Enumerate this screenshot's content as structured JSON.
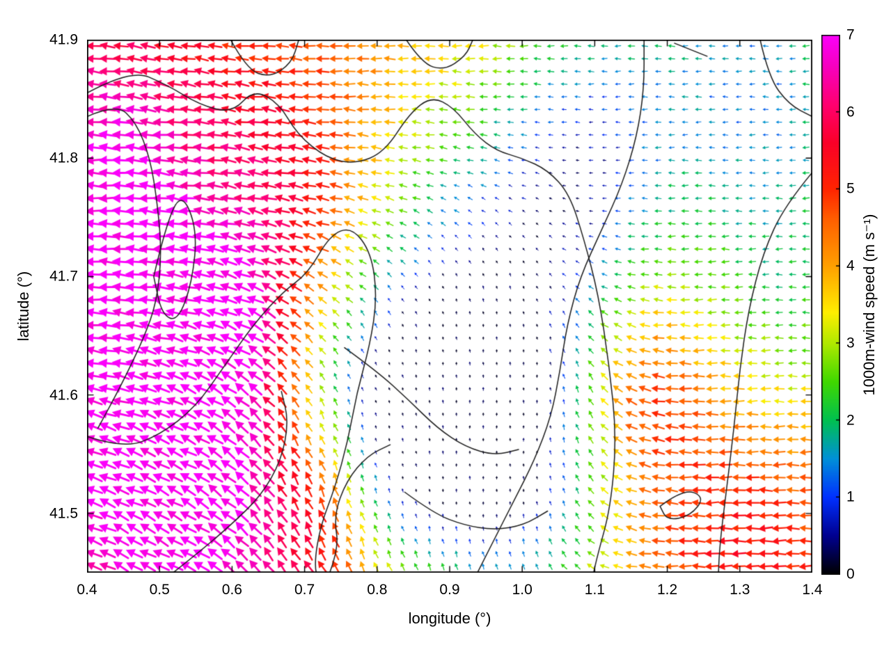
{
  "chart_data": {
    "type": "quiver",
    "title": "",
    "xlabel": "longitude (°)",
    "ylabel": "latitude (°)",
    "xlim": [
      0.4,
      1.4
    ],
    "ylim": [
      41.45,
      41.9
    ],
    "xticks": {
      "values": [
        0.4,
        0.5,
        0.6,
        0.7,
        0.8,
        0.9,
        1.0,
        1.1,
        1.2,
        1.3,
        1.4
      ],
      "labels": [
        "0.4",
        "0.5",
        "0.6",
        "0.7",
        "0.8",
        "0.9",
        "1.0",
        "1.1",
        "1.2",
        "1.3",
        "1.4"
      ]
    },
    "yticks": {
      "values": [
        41.5,
        41.6,
        41.7,
        41.8,
        41.9
      ],
      "labels": [
        "41.5",
        "41.6",
        "41.7",
        "41.8",
        "41.9"
      ]
    },
    "colorbar": {
      "label": "1000m-wind speed (m s⁻¹)",
      "min": 0,
      "max": 7,
      "ticks": {
        "values": [
          0,
          1,
          2,
          3,
          4,
          5,
          6,
          7
        ],
        "labels": [
          "0",
          "1",
          "2",
          "3",
          "4",
          "5",
          "6",
          "7"
        ]
      },
      "stops": [
        [
          0,
          "#000000"
        ],
        [
          0.5,
          "#000090"
        ],
        [
          1,
          "#0030ff"
        ],
        [
          1.5,
          "#0090d8"
        ],
        [
          2,
          "#00c050"
        ],
        [
          2.5,
          "#40d800"
        ],
        [
          3,
          "#b0e800"
        ],
        [
          3.4,
          "#ffee00"
        ],
        [
          4,
          "#ffa000"
        ],
        [
          4.6,
          "#ff6000"
        ],
        [
          5,
          "#ff2400"
        ],
        [
          5.6,
          "#fa0028"
        ],
        [
          6.1,
          "#ff0070"
        ],
        [
          6.6,
          "#f600c0"
        ],
        [
          7,
          "#fb00fb"
        ]
      ]
    },
    "grid": {
      "nx": 54,
      "ny": 42
    },
    "field": {
      "base_speed": 4.4,
      "base_angle": 180,
      "speed_jitter": 0.55,
      "angle_jitter": 16,
      "speed_features": [
        {
          "x": 0.53,
          "y": 41.5,
          "sigma": 0.155,
          "amp": 2.8
        },
        {
          "x": 0.44,
          "y": 41.81,
          "sigma": 0.11,
          "amp": 1.8
        },
        {
          "x": 0.4,
          "y": 41.66,
          "sigma": 0.1,
          "amp": 1.4
        },
        {
          "x": 0.6,
          "y": 41.65,
          "sigma": 0.06,
          "amp": 1.6
        },
        {
          "x": 0.95,
          "y": 41.575,
          "sigma": 0.095,
          "amp": -4.2
        },
        {
          "x": 0.82,
          "y": 41.545,
          "sigma": 0.075,
          "amp": -2.2
        },
        {
          "x": 1.33,
          "y": 41.875,
          "sigma": 0.12,
          "amp": -2.8
        },
        {
          "x": 1.1,
          "y": 41.845,
          "sigma": 0.1,
          "amp": -1.8
        },
        {
          "x": 0.97,
          "y": 41.71,
          "sigma": 0.11,
          "amp": -1.9
        },
        {
          "x": 0.8,
          "y": 41.63,
          "sigma": 0.075,
          "amp": -1.6
        },
        {
          "x": 1.17,
          "y": 41.6,
          "sigma": 0.055,
          "amp": 1.1
        },
        {
          "x": 1.31,
          "y": 41.47,
          "sigma": 0.1,
          "amp": 1.0
        },
        {
          "x": 1.4,
          "y": 41.67,
          "sigma": 0.09,
          "amp": -1.3
        },
        {
          "x": 1.05,
          "y": 41.46,
          "sigma": 0.08,
          "amp": -1.1
        },
        {
          "x": 0.74,
          "y": 41.52,
          "sigma": 0.05,
          "amp": 0.9
        },
        {
          "x": 0.67,
          "y": 41.79,
          "sigma": 0.07,
          "amp": 0.9
        },
        {
          "x": 0.88,
          "y": 41.77,
          "sigma": 0.09,
          "amp": -0.6
        },
        {
          "x": 0.7,
          "y": 41.6,
          "sigma": 0.06,
          "amp": -1.0
        },
        {
          "x": 1.28,
          "y": 41.66,
          "sigma": 0.09,
          "amp": -0.5
        },
        {
          "x": 1.08,
          "y": 41.77,
          "sigma": 0.07,
          "amp": -1.2
        }
      ],
      "direction_features": [
        {
          "x": 0.54,
          "y": 41.5,
          "sigma": 0.16,
          "angle": 140,
          "weight": 2.5
        },
        {
          "x": 0.74,
          "y": 41.52,
          "sigma": 0.085,
          "angle": 95,
          "weight": 4
        },
        {
          "x": 0.95,
          "y": 41.575,
          "sigma": 0.1,
          "angle": 70,
          "weight": 3
        },
        {
          "x": 0.44,
          "y": 41.7,
          "sigma": 0.1,
          "angle": 200,
          "weight": 1.2
        },
        {
          "x": 0.5,
          "y": 41.875,
          "sigma": 0.09,
          "angle": 160,
          "weight": 1.0
        }
      ]
    },
    "contours": {
      "color": "#1c1c1c",
      "width": 1.5,
      "lines": [
        [
          [
            0.4,
            41.855
          ],
          [
            0.46,
            41.875
          ],
          [
            0.51,
            41.862
          ],
          [
            0.555,
            41.845
          ],
          [
            0.6,
            41.838
          ],
          [
            0.63,
            41.858
          ],
          [
            0.665,
            41.846
          ],
          [
            0.69,
            41.82
          ],
          [
            0.73,
            41.8
          ],
          [
            0.77,
            41.795
          ],
          [
            0.81,
            41.805
          ],
          [
            0.845,
            41.838
          ],
          [
            0.875,
            41.852
          ],
          [
            0.905,
            41.843
          ],
          [
            0.935,
            41.82
          ],
          [
            0.965,
            41.806
          ],
          [
            1.0,
            41.8
          ],
          [
            1.035,
            41.79
          ],
          [
            1.065,
            41.77
          ],
          [
            1.085,
            41.732
          ],
          [
            1.105,
            41.685
          ],
          [
            1.12,
            41.625
          ],
          [
            1.13,
            41.565
          ],
          [
            1.122,
            41.505
          ],
          [
            1.103,
            41.463
          ],
          [
            1.095,
            41.44
          ]
        ],
        [
          [
            0.4,
            41.835
          ],
          [
            0.44,
            41.846
          ],
          [
            0.468,
            41.83
          ],
          [
            0.487,
            41.8
          ],
          [
            0.497,
            41.762
          ],
          [
            0.503,
            41.72
          ],
          [
            0.496,
            41.678
          ],
          [
            0.478,
            41.648
          ],
          [
            0.458,
            41.622
          ],
          [
            0.44,
            41.6
          ],
          [
            0.415,
            41.572
          ]
        ],
        [
          [
            0.492,
            41.7
          ],
          [
            0.508,
            41.742
          ],
          [
            0.53,
            41.772
          ],
          [
            0.552,
            41.74
          ],
          [
            0.545,
            41.695
          ],
          [
            0.525,
            41.662
          ],
          [
            0.503,
            41.668
          ],
          [
            0.492,
            41.7
          ]
        ],
        [
          [
            0.4,
            41.565
          ],
          [
            0.45,
            41.555
          ],
          [
            0.5,
            41.566
          ],
          [
            0.55,
            41.59
          ],
          [
            0.59,
            41.625
          ],
          [
            0.63,
            41.66
          ],
          [
            0.67,
            41.687
          ],
          [
            0.705,
            41.703
          ],
          [
            0.735,
            41.735
          ],
          [
            0.765,
            41.742
          ],
          [
            0.792,
            41.72
          ],
          [
            0.8,
            41.682
          ],
          [
            0.79,
            41.642
          ],
          [
            0.772,
            41.602
          ],
          [
            0.76,
            41.562
          ],
          [
            0.742,
            41.522
          ],
          [
            0.722,
            41.49
          ],
          [
            0.713,
            41.457
          ],
          [
            0.72,
            41.44
          ]
        ],
        [
          [
            0.93,
            41.44
          ],
          [
            0.958,
            41.474
          ],
          [
            0.988,
            41.51
          ],
          [
            1.017,
            41.545
          ],
          [
            1.04,
            41.582
          ],
          [
            1.052,
            41.62
          ],
          [
            1.062,
            41.66
          ],
          [
            1.08,
            41.7
          ],
          [
            1.11,
            41.74
          ],
          [
            1.138,
            41.778
          ],
          [
            1.158,
            41.818
          ],
          [
            1.168,
            41.858
          ],
          [
            1.168,
            41.9
          ]
        ],
        [
          [
            1.4,
            41.788
          ],
          [
            1.362,
            41.76
          ],
          [
            1.332,
            41.72
          ],
          [
            1.312,
            41.672
          ],
          [
            1.3,
            41.622
          ],
          [
            1.292,
            41.572
          ],
          [
            1.282,
            41.522
          ],
          [
            1.272,
            41.472
          ],
          [
            1.27,
            41.44
          ]
        ],
        [
          [
            1.328,
            41.9
          ],
          [
            1.34,
            41.868
          ],
          [
            1.368,
            41.845
          ],
          [
            1.4,
            41.835
          ]
        ],
        [
          [
            1.21,
            41.897
          ],
          [
            1.255,
            41.886
          ]
        ],
        [
          [
            0.498,
            41.44
          ],
          [
            0.548,
            41.464
          ],
          [
            0.598,
            41.49
          ],
          [
            0.64,
            41.515
          ],
          [
            0.668,
            41.545
          ],
          [
            0.678,
            41.578
          ],
          [
            0.668,
            41.603
          ]
        ],
        [
          [
            0.728,
            41.44
          ],
          [
            0.748,
            41.468
          ],
          [
            0.74,
            41.498
          ],
          [
            0.758,
            41.528
          ],
          [
            0.787,
            41.549
          ],
          [
            0.818,
            41.558
          ]
        ],
        [
          [
            0.755,
            41.64
          ],
          [
            0.8,
            41.62
          ],
          [
            0.843,
            41.596
          ],
          [
            0.883,
            41.572
          ],
          [
            0.922,
            41.556
          ],
          [
            0.962,
            41.549
          ],
          [
            0.995,
            41.554
          ]
        ],
        [
          [
            0.838,
            41.518
          ],
          [
            0.878,
            41.5
          ],
          [
            0.92,
            41.49
          ],
          [
            0.962,
            41.486
          ],
          [
            1.002,
            41.49
          ],
          [
            1.035,
            41.502
          ]
        ],
        [
          [
            1.19,
            41.506
          ],
          [
            1.222,
            41.521
          ],
          [
            1.252,
            41.514
          ],
          [
            1.232,
            41.498
          ],
          [
            1.2,
            41.494
          ],
          [
            1.19,
            41.506
          ]
        ],
        [
          [
            0.598,
            41.9
          ],
          [
            0.62,
            41.875
          ],
          [
            0.652,
            41.868
          ],
          [
            0.682,
            41.88
          ],
          [
            0.692,
            41.9
          ]
        ],
        [
          [
            0.84,
            41.9
          ],
          [
            0.862,
            41.88
          ],
          [
            0.892,
            41.874
          ],
          [
            0.922,
            41.886
          ],
          [
            0.932,
            41.9
          ]
        ]
      ]
    }
  }
}
